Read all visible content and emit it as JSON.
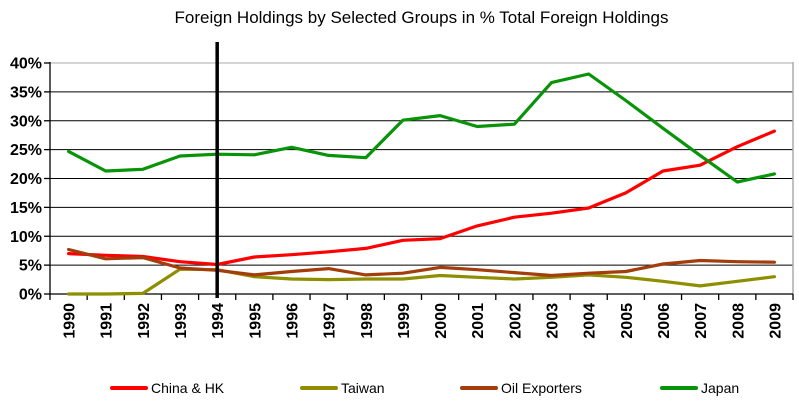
{
  "title": "Foreign Holdings by Selected Groups in % Total Foreign Holdings",
  "chart_data": {
    "type": "line",
    "title": "Foreign Holdings by Selected Groups in % Total Foreign Holdings",
    "x": [
      1990,
      1991,
      1992,
      1993,
      1994,
      1995,
      1996,
      1997,
      1998,
      1999,
      2000,
      2001,
      2002,
      2003,
      2004,
      2005,
      2006,
      2007,
      2008,
      2009
    ],
    "series": [
      {
        "name": "China & HK",
        "color": "#FE0000",
        "values": [
          7.0,
          6.7,
          6.5,
          5.6,
          5.1,
          6.4,
          6.8,
          7.3,
          7.9,
          9.3,
          9.6,
          11.8,
          13.3,
          14.0,
          14.9,
          17.5,
          21.3,
          22.3,
          25.5,
          28.2
        ]
      },
      {
        "name": "Taiwan",
        "color": "#8E8E00",
        "values": [
          0.0,
          0.0,
          0.1,
          4.3,
          4.2,
          3.0,
          2.6,
          2.5,
          2.6,
          2.6,
          3.2,
          2.9,
          2.6,
          2.9,
          3.3,
          2.9,
          2.2,
          1.4,
          2.2,
          3.0
        ]
      },
      {
        "name": "Oil Exporters",
        "color": "#A33D0B",
        "values": [
          7.7,
          6.1,
          6.3,
          4.5,
          4.1,
          3.3,
          3.9,
          4.4,
          3.3,
          3.6,
          4.6,
          4.2,
          3.7,
          3.2,
          3.6,
          3.9,
          5.2,
          5.8,
          5.6,
          5.5
        ]
      },
      {
        "name": "Japan",
        "color": "#089408",
        "values": [
          24.7,
          21.3,
          21.6,
          23.9,
          24.2,
          24.1,
          25.4,
          24.0,
          23.6,
          30.1,
          30.9,
          29.0,
          29.4,
          36.6,
          38.1,
          33.5,
          28.7,
          24.0,
          19.4,
          20.8
        ]
      }
    ],
    "ylim": [
      0,
      40
    ],
    "yticks": {
      "values": [
        0,
        5,
        10,
        15,
        20,
        25,
        30,
        35,
        40
      ],
      "labels": [
        "0%",
        "5%",
        "10%",
        "15%",
        "20%",
        "25%",
        "30%",
        "35%",
        "40%"
      ]
    },
    "grid": "horizontal-black, outer border gray",
    "legend_position": "bottom",
    "annotation": {
      "type": "vline",
      "x": 1994,
      "color": "#000000"
    }
  },
  "colors": {
    "gridline": "#000000",
    "outer_border": "#ABABAB",
    "axis": "#000000",
    "background": "#FFFFFF"
  }
}
